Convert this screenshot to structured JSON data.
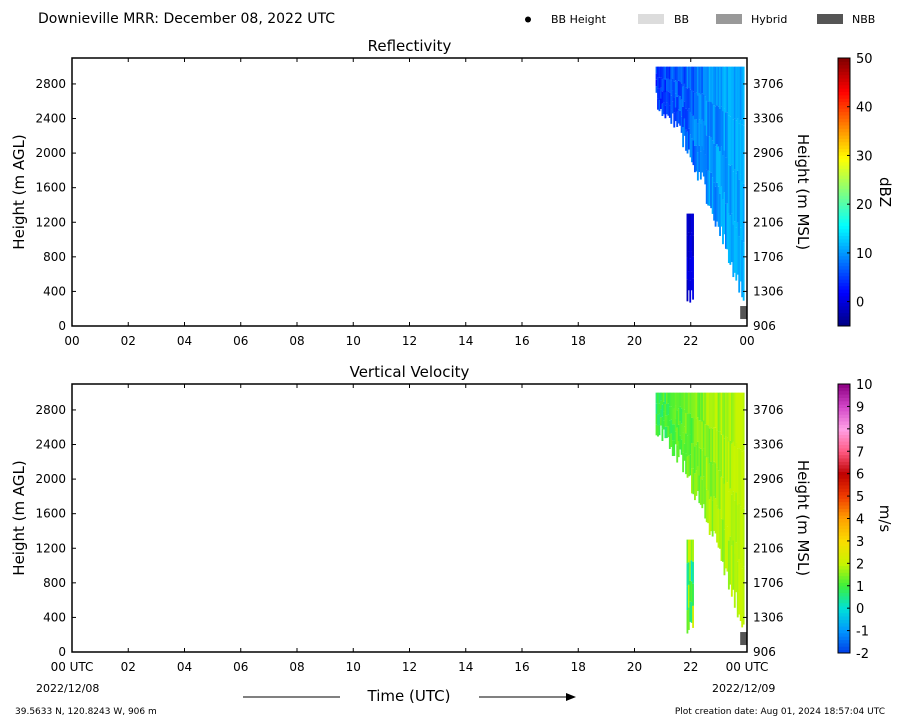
{
  "header": {
    "title": "Downieville MRR:  December 08, 2022 UTC",
    "legend": [
      {
        "label": "BB Height",
        "symbol": "dot",
        "color": "#000000"
      },
      {
        "label": "BB",
        "symbol": "box",
        "color": "#dcdcdc"
      },
      {
        "label": "Hybrid",
        "symbol": "box",
        "color": "#999999"
      },
      {
        "label": "NBB",
        "symbol": "box",
        "color": "#555555"
      }
    ]
  },
  "footer": {
    "location": "39.5633 N, 120.8243 W, 906 m",
    "creation": "Plot creation date: Aug 01, 2024 18:57:04 UTC",
    "xlabel": "Time (UTC)",
    "start_date": "2022/12/08",
    "end_date": "2022/12/09"
  },
  "chart_data": [
    {
      "type": "heatmap",
      "title": "Reflectivity",
      "ylabel": "Height (m AGL)",
      "y2label": "Height (m MSL)",
      "x_ticks": [
        "00",
        "02",
        "04",
        "06",
        "08",
        "10",
        "12",
        "14",
        "16",
        "18",
        "20",
        "22",
        "00"
      ],
      "y_ticks": [
        0,
        400,
        800,
        1200,
        1600,
        2000,
        2400,
        2800
      ],
      "y2_ticks": [
        906,
        1306,
        1706,
        2106,
        2506,
        2906,
        3306,
        3706
      ],
      "xlim": [
        0,
        24
      ],
      "ylim": [
        0,
        3100
      ],
      "colorbar": {
        "label": "dBZ",
        "ticks": [
          0,
          10,
          20,
          30,
          40,
          50
        ],
        "range": [
          -5,
          50
        ]
      },
      "regions": [
        {
          "x": [
            20.75,
            23.9
          ],
          "y_top": 3000,
          "y_bottom_start": 2600,
          "y_bottom_end": 300,
          "value_low": 2,
          "value_high": 12
        },
        {
          "x": [
            21.85,
            22.1
          ],
          "y_top": 1300,
          "y_bottom_start": 300,
          "y_bottom_end": 300,
          "value_low": -2,
          "value_high": 1
        }
      ],
      "bb_flags": [
        {
          "x": 23.9,
          "y": 150,
          "type": "NBB"
        }
      ]
    },
    {
      "type": "heatmap",
      "title": "Vertical Velocity",
      "ylabel": "Height (m AGL)",
      "y2label": "Height (m MSL)",
      "x_ticks": [
        "00 UTC",
        "02",
        "04",
        "06",
        "08",
        "10",
        "12",
        "14",
        "16",
        "18",
        "20",
        "22",
        "00 UTC"
      ],
      "y_ticks": [
        0,
        400,
        800,
        1200,
        1600,
        2000,
        2400,
        2800
      ],
      "y2_ticks": [
        906,
        1306,
        1706,
        2106,
        2506,
        2906,
        3306,
        3706
      ],
      "xlim": [
        0,
        24
      ],
      "ylim": [
        0,
        3100
      ],
      "colorbar": {
        "label": "m/s",
        "ticks": [
          -2,
          -1,
          0,
          1,
          2,
          3,
          4,
          5,
          6,
          7,
          8,
          9,
          10
        ],
        "range": [
          -2,
          10
        ]
      },
      "regions": [
        {
          "x": [
            20.75,
            23.9
          ],
          "y_top": 3000,
          "y_bottom_start": 2600,
          "y_bottom_end": 300,
          "value_low": 0.5,
          "value_high": 2
        },
        {
          "x": [
            21.85,
            22.1
          ],
          "y_top": 1300,
          "y_bottom_start": 300,
          "y_bottom_end": 300,
          "value_low": 0,
          "value_high": 2.5
        }
      ],
      "bb_flags": [
        {
          "x": 23.9,
          "y": 150,
          "type": "NBB"
        }
      ]
    }
  ]
}
